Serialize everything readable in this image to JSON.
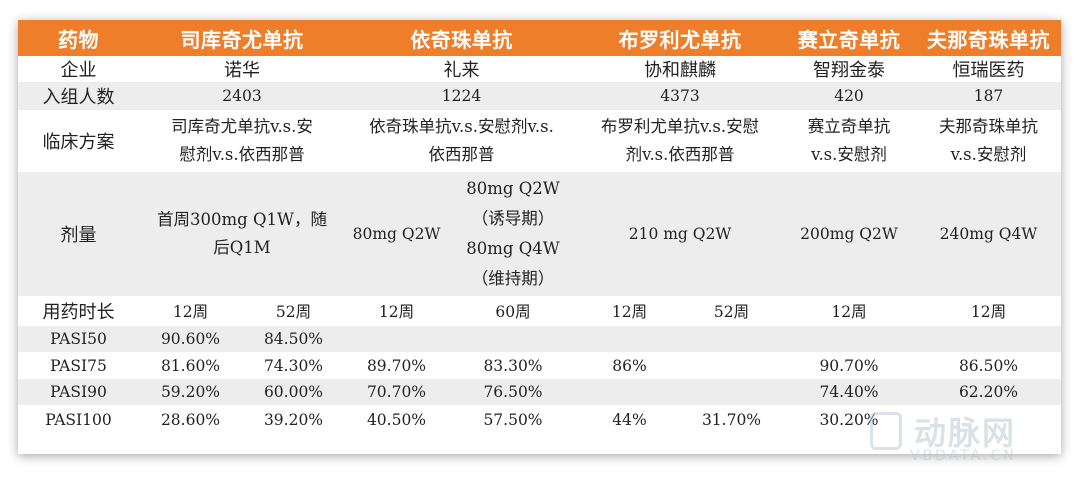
{
  "header": {
    "label": "药物",
    "drugs": [
      "司库奇尤单抗",
      "依奇珠单抗",
      "布罗利尤单抗",
      "赛立奇单抗",
      "夫那奇珠单抗"
    ]
  },
  "company": {
    "label": "企业",
    "values": [
      "诺华",
      "礼来",
      "协和麒麟",
      "智翔金泰",
      "恒瑞医药"
    ]
  },
  "enrollment": {
    "label": "入组人数",
    "values": [
      "2403",
      "1224",
      "4373",
      "420",
      "187"
    ]
  },
  "regimen": {
    "label": "临床方案",
    "values": [
      [
        "司库奇尤单抗v.s.安",
        "慰剂v.s.依西那普"
      ],
      [
        "依奇珠单抗v.s.安慰剂v.s.",
        "依西那普"
      ],
      [
        "布罗利尤单抗v.s.安慰",
        "剂v.s.依西那普"
      ],
      [
        "赛立奇单抗",
        "v.s.安慰剂"
      ],
      [
        "夫那奇珠单抗",
        "v.s.安慰剂"
      ]
    ]
  },
  "dose": {
    "label": "剂量",
    "values": {
      "d1": [
        "首周300mg Q1W，随",
        "后Q1M"
      ],
      "d2a": "80mg Q2W",
      "d2b": [
        "80mg Q2W",
        "（诱导期）",
        "80mg Q4W",
        "（维持期）"
      ],
      "d3": "210 mg Q2W",
      "d4": "200mg Q2W",
      "d5": "240mg Q4W"
    }
  },
  "duration": {
    "label": "用药时长",
    "values": [
      "12周",
      "52周",
      "12周",
      "60周",
      "12周",
      "52周",
      "12周",
      "12周"
    ]
  },
  "pasi": [
    {
      "label": "PASI50",
      "values": [
        "90.60%",
        "84.50%",
        "",
        "",
        "",
        "",
        "",
        ""
      ]
    },
    {
      "label": "PASI75",
      "values": [
        "81.60%",
        "74.30%",
        "89.70%",
        "83.30%",
        "86%",
        "",
        "90.70%",
        "86.50%"
      ]
    },
    {
      "label": "PASI90",
      "values": [
        "59.20%",
        "60.00%",
        "70.70%",
        "76.50%",
        "",
        "",
        "74.40%",
        "62.20%"
      ]
    },
    {
      "label": "PASI100",
      "values": [
        "28.60%",
        "39.20%",
        "40.50%",
        "57.50%",
        "44%",
        "31.70%",
        "30.20%",
        ""
      ]
    }
  ],
  "watermark": {
    "cn": "动脉网",
    "en": "VBDATA.CN"
  },
  "colors": {
    "header_bg": "#ee7e2a",
    "stripe": "#ededed"
  }
}
